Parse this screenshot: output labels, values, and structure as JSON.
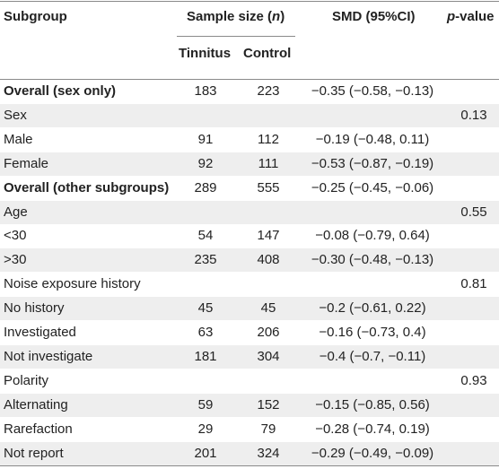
{
  "header": {
    "subgroup": "Subgroup",
    "sample_size_prefix": "Sample size (",
    "sample_size_var": "n",
    "sample_size_suffix": ")",
    "smd": "SMD (95%CI)",
    "p_var": "p",
    "p_suffix": "-value",
    "tinnitus": "Tinnitus",
    "control": "Control"
  },
  "rows": [
    {
      "label": "Overall (sex only)",
      "bold": true,
      "tinnitus": "183",
      "control": "223",
      "smd": "−0.35 (−0.58, −0.13)",
      "p": ""
    },
    {
      "label": "Sex",
      "bold": false,
      "tinnitus": "",
      "control": "",
      "smd": "",
      "p": "0.13"
    },
    {
      "label": "Male",
      "bold": false,
      "tinnitus": "91",
      "control": "112",
      "smd": "−0.19 (−0.48, 0.11)",
      "p": ""
    },
    {
      "label": "Female",
      "bold": false,
      "tinnitus": "92",
      "control": "111",
      "smd": "−0.53 (−0.87, −0.19)",
      "p": ""
    },
    {
      "label": "Overall (other subgroups)",
      "bold": true,
      "tinnitus": "289",
      "control": "555",
      "smd": "−0.25 (−0.45, −0.06)",
      "p": ""
    },
    {
      "label": "Age",
      "bold": false,
      "tinnitus": "",
      "control": "",
      "smd": "",
      "p": "0.55"
    },
    {
      "label": "<30",
      "bold": false,
      "tinnitus": "54",
      "control": "147",
      "smd": "−0.08 (−0.79, 0.64)",
      "p": ""
    },
    {
      "label": ">30",
      "bold": false,
      "tinnitus": "235",
      "control": "408",
      "smd": "−0.30 (−0.48, −0.13)",
      "p": ""
    },
    {
      "label": "Noise exposure history",
      "bold": false,
      "tinnitus": "",
      "control": "",
      "smd": "",
      "p": "0.81"
    },
    {
      "label": "No history",
      "bold": false,
      "tinnitus": "45",
      "control": "45",
      "smd": "−0.2 (−0.61, 0.22)",
      "p": ""
    },
    {
      "label": "Investigated",
      "bold": false,
      "tinnitus": "63",
      "control": "206",
      "smd": "−0.16 (−0.73, 0.4)",
      "p": ""
    },
    {
      "label": "Not investigate",
      "bold": false,
      "tinnitus": "181",
      "control": "304",
      "smd": "−0.4 (−0.7, −0.11)",
      "p": ""
    },
    {
      "label": "Polarity",
      "bold": false,
      "tinnitus": "",
      "control": "",
      "smd": "",
      "p": "0.93"
    },
    {
      "label": "Alternating",
      "bold": false,
      "tinnitus": "59",
      "control": "152",
      "smd": "−0.15 (−0.85, 0.56)",
      "p": ""
    },
    {
      "label": "Rarefaction",
      "bold": false,
      "tinnitus": "29",
      "control": "79",
      "smd": "−0.28 (−0.74, 0.19)",
      "p": ""
    },
    {
      "label": "Not report",
      "bold": false,
      "tinnitus": "201",
      "control": "324",
      "smd": "−0.29 (−0.49, −0.09)",
      "p": ""
    }
  ],
  "colors": {
    "shade": "#eeeeee",
    "rule": "#8a8a8a",
    "text": "#222222"
  }
}
